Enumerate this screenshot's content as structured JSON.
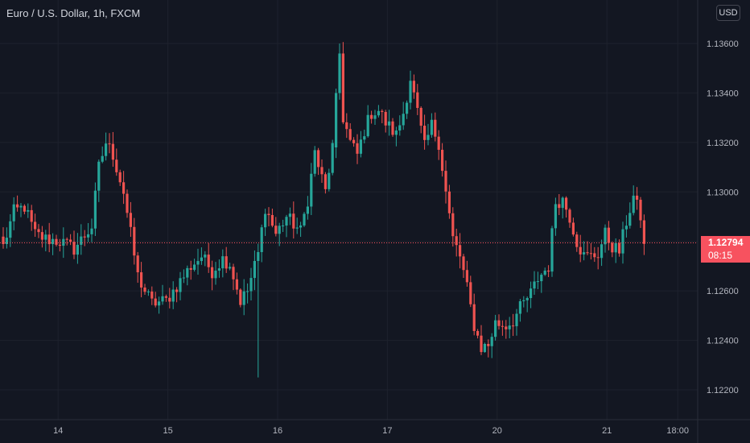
{
  "header": {
    "symbol_title": "Euro / U.S. Dollar, 1h, FXCM",
    "currency": "USD"
  },
  "colors": {
    "background": "#131722",
    "grid": "#1e222d",
    "up": "#26a69a",
    "down": "#ef5350",
    "axis_text": "#b2b5be",
    "price_line": "#f7525f"
  },
  "last_price": {
    "value": 1.12794,
    "label": "1.12794",
    "countdown": "08:15"
  },
  "chart_data": {
    "type": "candlestick",
    "title": "Euro / U.S. Dollar, 1h, FXCM",
    "y_axis": {
      "position": "right",
      "ticks": [
        1.136,
        1.134,
        1.132,
        1.13,
        1.128,
        1.126,
        1.124,
        1.122
      ],
      "tick_labels": [
        "1.13600",
        "1.13400",
        "1.13200",
        "1.13000",
        "1.12800",
        "1.12600",
        "1.12400",
        "1.12200"
      ],
      "range": [
        1.2215,
        1.1376
      ]
    },
    "x_axis": {
      "tick_labels": [
        "14",
        "15",
        "16",
        "17",
        "20",
        "21",
        "18:00"
      ],
      "tick_bars": [
        15.5,
        46.5,
        77.5,
        108.5,
        139.5,
        170.5,
        190.5
      ],
      "bars_visible": [
        0,
        194
      ]
    },
    "grid": true,
    "anchors": [
      [
        0,
        1.1278
      ],
      [
        3,
        1.1292
      ],
      [
        6,
        1.1294
      ],
      [
        9,
        1.1283
      ],
      [
        12,
        1.1281
      ],
      [
        16,
        1.128
      ],
      [
        20,
        1.1277
      ],
      [
        25,
        1.1286
      ],
      [
        27,
        1.131
      ],
      [
        29,
        1.132
      ],
      [
        31,
        1.1315
      ],
      [
        34,
        1.13
      ],
      [
        36,
        1.1283
      ],
      [
        38,
        1.1266
      ],
      [
        40,
        1.126
      ],
      [
        42,
        1.1255
      ],
      [
        46,
        1.1256
      ],
      [
        49,
        1.1262
      ],
      [
        53,
        1.127
      ],
      [
        56,
        1.1274
      ],
      [
        59,
        1.1268
      ],
      [
        62,
        1.1273
      ],
      [
        64,
        1.1271
      ],
      [
        67,
        1.1256
      ],
      [
        69,
        1.126
      ],
      [
        72,
        1.1275
      ],
      [
        74,
        1.1294
      ],
      [
        77,
        1.1283
      ],
      [
        80,
        1.129
      ],
      [
        84,
        1.1284
      ],
      [
        86,
        1.1297
      ],
      [
        88,
        1.1316
      ],
      [
        91,
        1.13
      ],
      [
        93,
        1.1318
      ],
      [
        95,
        1.1356
      ],
      [
        96,
        1.133
      ],
      [
        98,
        1.132
      ],
      [
        100,
        1.1315
      ],
      [
        102,
        1.1325
      ],
      [
        104,
        1.1332
      ],
      [
        106,
        1.1333
      ],
      [
        108,
        1.1328
      ],
      [
        111,
        1.1323
      ],
      [
        113,
        1.1332
      ],
      [
        115,
        1.1346
      ],
      [
        117,
        1.1332
      ],
      [
        119,
        1.1318
      ],
      [
        121,
        1.1327
      ],
      [
        123,
        1.132
      ],
      [
        125,
        1.13
      ],
      [
        127,
        1.1281
      ],
      [
        129,
        1.1274
      ],
      [
        131,
        1.1261
      ],
      [
        133,
        1.1246
      ],
      [
        135,
        1.1237
      ],
      [
        137,
        1.1238
      ],
      [
        139,
        1.1247
      ],
      [
        142,
        1.1246
      ],
      [
        144,
        1.1248
      ],
      [
        146,
        1.1253
      ],
      [
        149,
        1.1259
      ],
      [
        151,
        1.1265
      ],
      [
        154,
        1.127
      ],
      [
        156,
        1.1296
      ],
      [
        158,
        1.1297
      ],
      [
        160,
        1.129
      ],
      [
        162,
        1.128
      ],
      [
        164,
        1.1274
      ],
      [
        166,
        1.1274
      ],
      [
        168,
        1.1275
      ],
      [
        170,
        1.1283
      ],
      [
        172,
        1.1278
      ],
      [
        174,
        1.1276
      ],
      [
        176,
        1.1288
      ],
      [
        178,
        1.1298
      ],
      [
        180,
        1.129
      ],
      [
        181,
        1.1279
      ]
    ]
  }
}
